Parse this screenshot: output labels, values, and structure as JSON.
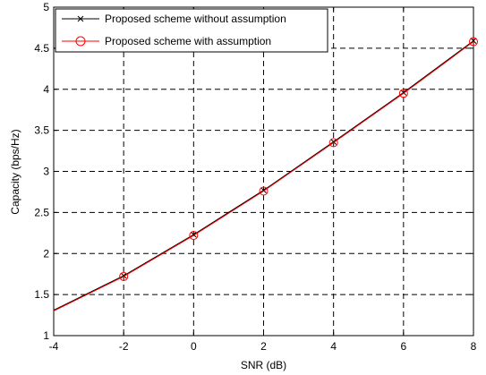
{
  "chart_data": {
    "type": "line",
    "xlabel": "SNR (dB)",
    "ylabel": "Capacity (bps/Hz)",
    "xlim": [
      -4,
      8
    ],
    "ylim": [
      1,
      5
    ],
    "xticks": [
      -4,
      -2,
      0,
      2,
      4,
      6,
      8
    ],
    "yticks": [
      1,
      1.5,
      2,
      2.5,
      3,
      3.5,
      4,
      4.5,
      5
    ],
    "xtick_labels": [
      "-4",
      "-2",
      "0",
      "2",
      "4",
      "6",
      "8"
    ],
    "ytick_labels": [
      "1",
      "1.5",
      "2",
      "2.5",
      "3",
      "3.5",
      "4",
      "4.5",
      "5"
    ],
    "grid": true,
    "legend_position": "top-left",
    "series": [
      {
        "name": "Proposed scheme without assumption",
        "color": "#000000",
        "marker": "x",
        "x": [
          -4,
          -2,
          0,
          2,
          4,
          6,
          8
        ],
        "y": [
          1.31,
          1.73,
          2.23,
          2.77,
          3.36,
          3.96,
          4.59
        ]
      },
      {
        "name": "Proposed scheme with assumption",
        "color": "#ff0000",
        "marker": "circle",
        "x": [
          -4,
          -2,
          0,
          2,
          4,
          6,
          8
        ],
        "y": [
          1.3,
          1.72,
          2.22,
          2.76,
          3.35,
          3.95,
          4.58
        ]
      }
    ]
  }
}
